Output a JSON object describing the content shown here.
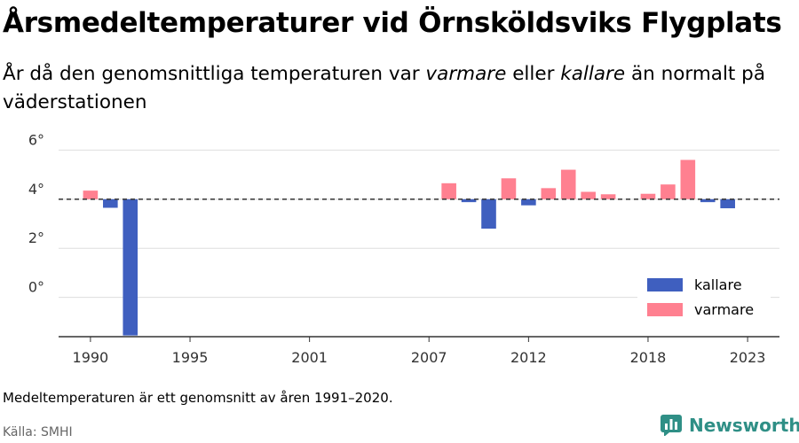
{
  "title": "Årsmedeltemperaturer vid Örnsköldsviks Flygplats",
  "subtitle": {
    "part1": "År då den genomsnittliga temperaturen var ",
    "warmer": "varmare",
    "part2": " eller ",
    "colder": "kallare",
    "part3": " än normalt på väderstationen"
  },
  "note": "Medeltemperaturen är ett genomsnitt av åren 1991–2020.",
  "source": "Källa: SMHI",
  "brand": {
    "name": "Newsworthy",
    "icon": "bar-chart-logo-icon"
  },
  "colors": {
    "kallare": "#3f5fbf",
    "varmare": "#ff8090",
    "brand": "#2f8f86"
  },
  "chart_data": {
    "type": "bar",
    "title": "Årsmedeltemperaturer vid Örnsköldsviks Flygplats",
    "baseline": 4.0,
    "ylim": [
      -1.6,
      6.7
    ],
    "xlim": [
      1988.4,
      2024.6
    ],
    "yticks": [
      0,
      2,
      4,
      6
    ],
    "ytick_labels": [
      "0°",
      "2°",
      "4°",
      "6°"
    ],
    "xticks": [
      1990,
      1995,
      2001,
      2007,
      2012,
      2018,
      2023
    ],
    "xtick_labels": [
      "1990",
      "1995",
      "2001",
      "2007",
      "2012",
      "2018",
      "2023"
    ],
    "grid": true,
    "legend_position": "bottom-right",
    "legend": [
      {
        "name": "kallare",
        "color": "#3f5fbf"
      },
      {
        "name": "varmare",
        "color": "#ff8090"
      }
    ],
    "x": [
      1990,
      1991,
      1992,
      2008,
      2009,
      2010,
      2011,
      2012,
      2013,
      2014,
      2015,
      2016,
      2018,
      2019,
      2020,
      2021,
      2022
    ],
    "values": [
      4.35,
      3.65,
      -1.55,
      4.65,
      3.88,
      2.8,
      4.85,
      3.75,
      4.45,
      5.2,
      4.3,
      4.2,
      4.22,
      4.6,
      5.6,
      3.88,
      3.63
    ]
  }
}
